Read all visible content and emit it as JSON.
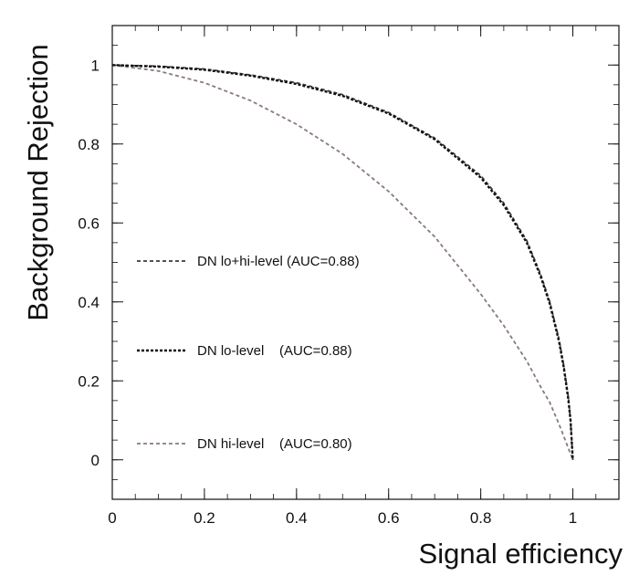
{
  "chart_data": {
    "type": "line",
    "title": "",
    "xlabel": "Signal efficiency",
    "ylabel": "Background Rejection",
    "xlim": [
      0,
      1.1
    ],
    "ylim": [
      -0.1,
      1.1
    ],
    "x_ticks": [
      "0",
      "0.2",
      "0.4",
      "0.6",
      "0.8",
      "1"
    ],
    "y_ticks": [
      "0",
      "0.2",
      "0.4",
      "0.6",
      "0.8",
      "1"
    ],
    "grid": false,
    "series": [
      {
        "name": "DN lo+hi-level (AUC=0.88)",
        "color": "#3a3a3a",
        "dash": "dashed",
        "x": [
          0,
          0.1,
          0.2,
          0.3,
          0.4,
          0.5,
          0.6,
          0.7,
          0.8,
          0.85,
          0.9,
          0.93,
          0.95,
          0.97,
          0.98,
          0.99,
          0.995,
          1.0
        ],
        "y": [
          1.0,
          0.997,
          0.99,
          0.975,
          0.955,
          0.925,
          0.88,
          0.815,
          0.72,
          0.65,
          0.555,
          0.47,
          0.4,
          0.305,
          0.24,
          0.16,
          0.1,
          0.0
        ]
      },
      {
        "name": "DN lo-level    (AUC=0.88)",
        "color": "#111111",
        "dash": "dotted",
        "x": [
          0,
          0.1,
          0.2,
          0.3,
          0.4,
          0.5,
          0.6,
          0.7,
          0.8,
          0.85,
          0.9,
          0.93,
          0.95,
          0.97,
          0.98,
          0.99,
          0.995,
          1.0
        ],
        "y": [
          1.0,
          0.996,
          0.988,
          0.973,
          0.952,
          0.922,
          0.877,
          0.812,
          0.715,
          0.645,
          0.55,
          0.465,
          0.395,
          0.3,
          0.235,
          0.155,
          0.1,
          0.0
        ]
      },
      {
        "name": "DN hi-level    (AUC=0.80)",
        "color": "#8a7a7a",
        "dash": "dashed",
        "x": [
          0,
          0.1,
          0.2,
          0.3,
          0.4,
          0.5,
          0.6,
          0.7,
          0.8,
          0.85,
          0.9,
          0.93,
          0.95,
          0.97,
          0.98,
          0.99,
          1.0
        ],
        "y": [
          1.0,
          0.985,
          0.955,
          0.91,
          0.85,
          0.775,
          0.68,
          0.565,
          0.42,
          0.34,
          0.25,
          0.185,
          0.145,
          0.09,
          0.06,
          0.03,
          0.0
        ]
      }
    ],
    "legend": {
      "placement": "left, stacked vertically inside plot",
      "entries": [
        "DN lo+hi-level (AUC=0.88)",
        "DN lo-level    (AUC=0.88)",
        "DN hi-level    (AUC=0.80)"
      ]
    }
  }
}
